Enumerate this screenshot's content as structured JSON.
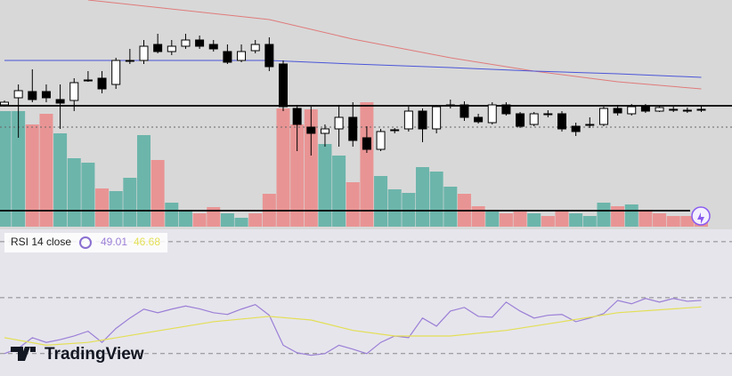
{
  "chart_data": {
    "type": "candlestick",
    "ylim": [
      45,
      300
    ],
    "open": [
      182,
      190,
      197,
      197,
      188,
      187,
      210,
      212,
      205,
      232,
      232,
      250,
      242,
      248,
      255,
      250,
      242,
      232,
      243,
      250,
      228,
      178,
      157,
      150,
      155,
      168,
      145,
      132,
      154,
      155,
      175,
      155,
      182,
      182,
      168,
      162,
      182,
      172,
      160,
      172,
      172,
      158,
      160,
      160,
      178,
      172,
      180,
      175,
      177,
      176,
      177
    ],
    "high": [
      187,
      205,
      222,
      205,
      205,
      212,
      220,
      220,
      235,
      245,
      255,
      262,
      255,
      262,
      260,
      255,
      250,
      250,
      255,
      258,
      232,
      182,
      180,
      160,
      182,
      185,
      158,
      155,
      156,
      180,
      178,
      182,
      188,
      186,
      172,
      185,
      185,
      174,
      174,
      176,
      175,
      162,
      168,
      180,
      182,
      183,
      183,
      181,
      180,
      179,
      181
    ],
    "low": [
      180,
      145,
      185,
      185,
      155,
      175,
      208,
      195,
      200,
      228,
      228,
      240,
      238,
      245,
      245,
      242,
      228,
      230,
      240,
      220,
      175,
      130,
      125,
      135,
      135,
      135,
      128,
      130,
      150,
      152,
      140,
      150,
      178,
      164,
      161,
      160,
      170,
      156,
      158,
      168,
      152,
      147,
      156,
      158,
      170,
      170,
      173,
      174,
      174,
      173,
      174
    ],
    "close": [
      185,
      198,
      188,
      190,
      184,
      207,
      210,
      200,
      232,
      232,
      248,
      242,
      248,
      255,
      248,
      245,
      230,
      242,
      250,
      225,
      180,
      160,
      150,
      155,
      168,
      142,
      132,
      152,
      154,
      175,
      155,
      180,
      182,
      168,
      163,
      182,
      172,
      158,
      172,
      172,
      155,
      152,
      160,
      178,
      173,
      180,
      175,
      179,
      177,
      176,
      177
    ],
    "up_color": "#ffffff",
    "down_color": "#000000",
    "volume": {
      "ylim": [
        0,
        255
      ],
      "values": [
        130,
        130,
        115,
        127,
        105,
        77,
        72,
        43,
        40,
        55,
        103,
        75,
        27,
        18,
        15,
        22,
        15,
        10,
        15,
        37,
        133,
        115,
        132,
        93,
        80,
        50,
        140,
        57,
        42,
        38,
        67,
        62,
        45,
        37,
        23,
        17,
        15,
        17,
        15,
        12,
        18,
        15,
        12,
        27,
        23,
        25,
        19,
        15,
        12,
        12,
        10
      ],
      "colors": [
        "#6cb5ab",
        "#6cb5ab",
        "#e99494",
        "#e99494",
        "#6cb5ab",
        "#6cb5ab",
        "#6cb5ab",
        "#e99494",
        "#6cb5ab",
        "#6cb5ab",
        "#6cb5ab",
        "#e99494",
        "#6cb5ab",
        "#6cb5ab",
        "#e99494",
        "#e99494",
        "#6cb5ab",
        "#6cb5ab",
        "#e99494",
        "#e99494",
        "#e99494",
        "#e99494",
        "#e99494",
        "#6cb5ab",
        "#6cb5ab",
        "#e99494",
        "#e99494",
        "#6cb5ab",
        "#6cb5ab",
        "#6cb5ab",
        "#6cb5ab",
        "#6cb5ab",
        "#6cb5ab",
        "#e99494",
        "#e99494",
        "#6cb5ab",
        "#e99494",
        "#e99494",
        "#6cb5ab",
        "#e99494",
        "#e99494",
        "#6cb5ab",
        "#6cb5ab",
        "#6cb5ab",
        "#e99494",
        "#6cb5ab",
        "#e99494",
        "#e99494",
        "#e99494",
        "#e99494",
        "#e99494"
      ]
    },
    "lines": [
      {
        "color": "#e07a7a",
        "x": [
          6,
          19,
          25,
          32,
          38,
          44,
          50
        ],
        "values": [
          300,
          278,
          256,
          235,
          220,
          208,
          200
        ]
      },
      {
        "color": "#4a55d8",
        "x": [
          0,
          19,
          25,
          32,
          38,
          44,
          50
        ],
        "values": [
          232,
          232,
          228,
          224,
          220,
          217,
          213
        ]
      }
    ],
    "levels": [
      {
        "value": 181,
        "color": "#000000",
        "style": "solid"
      },
      {
        "value": 157,
        "color": "#666666",
        "style": "dotted"
      },
      {
        "value": 63,
        "color": "#000000",
        "style": "solid"
      }
    ],
    "rsi": {
      "name": "RSI 14 close",
      "ylim": [
        22,
        74.4
      ],
      "levels": [
        70,
        50,
        30
      ],
      "series": [
        {
          "color": "#9b7fd6",
          "values": [
            30,
            31.9,
            35.7,
            34,
            35,
            36.3,
            38,
            34,
            39,
            42.7,
            45.9,
            44.6,
            45.9,
            47,
            46,
            44.6,
            44,
            45.9,
            47.5,
            43.7,
            33,
            30.3,
            29.4,
            30,
            33,
            31.6,
            30,
            34,
            36.3,
            35.7,
            42.7,
            39.8,
            45.2,
            46.5,
            43.3,
            43,
            48.4,
            45.2,
            42.7,
            43.7,
            44,
            41.4,
            42.7,
            44.3,
            49,
            47.8,
            49.7,
            48.4,
            49.7,
            48.7,
            49.01
          ]
        },
        {
          "color": "#e3df55",
          "x": [
            0,
            3,
            6,
            10,
            15,
            19,
            22,
            25,
            28,
            32,
            36,
            40,
            44,
            50
          ],
          "values": [
            35.7,
            33,
            34,
            37.3,
            41.4,
            43.3,
            42,
            38.3,
            36.3,
            36.3,
            38.3,
            41.4,
            44.6,
            46.68
          ]
        }
      ]
    }
  },
  "brand": "TradingView"
}
